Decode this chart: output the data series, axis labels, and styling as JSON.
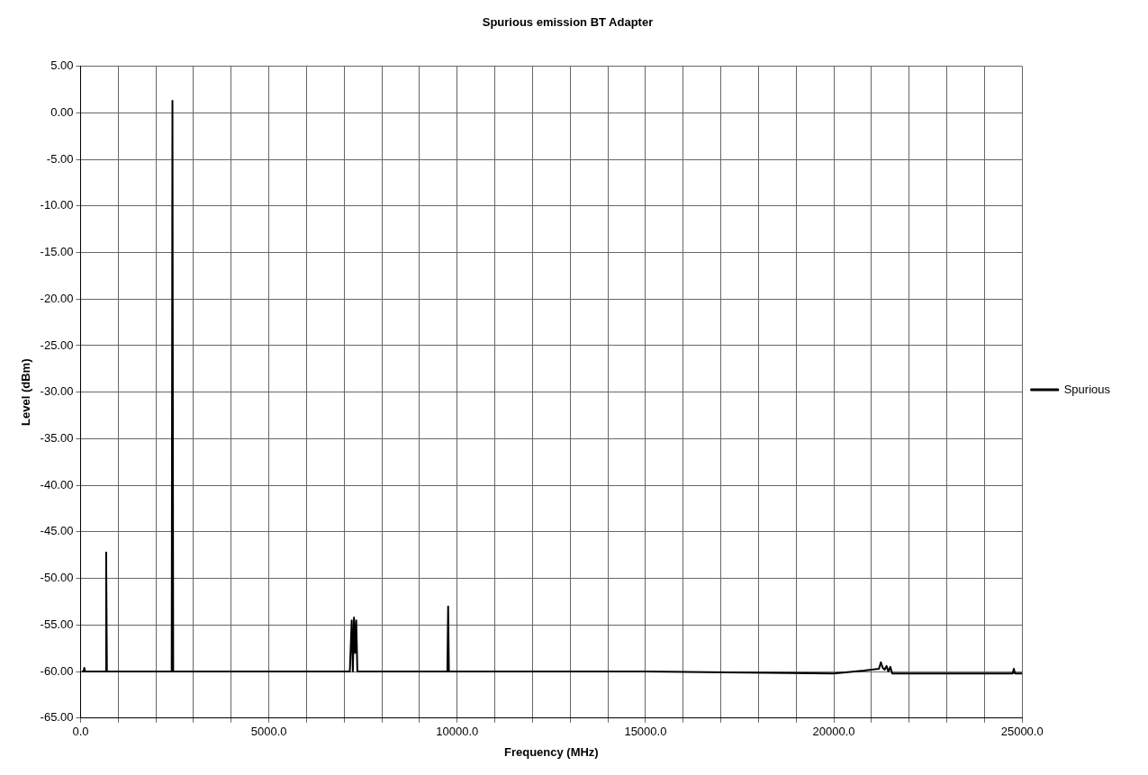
{
  "chart_data": {
    "type": "line",
    "title": "Spurious emission BT Adapter",
    "xlabel": "Frequency (MHz)",
    "ylabel": "Level (dBm)",
    "legend": "right",
    "grid": true,
    "marker": "none",
    "line_style": "solid",
    "xlim": [
      0,
      25000
    ],
    "ylim": [
      -65,
      5
    ],
    "xticks": [
      {
        "value": 0,
        "label": "0.0"
      },
      {
        "value": 1000,
        "label": null
      },
      {
        "value": 2000,
        "label": null
      },
      {
        "value": 3000,
        "label": null
      },
      {
        "value": 4000,
        "label": null
      },
      {
        "value": 5000,
        "label": "5000.0"
      },
      {
        "value": 6000,
        "label": null
      },
      {
        "value": 7000,
        "label": null
      },
      {
        "value": 8000,
        "label": null
      },
      {
        "value": 9000,
        "label": null
      },
      {
        "value": 10000,
        "label": "10000.0"
      },
      {
        "value": 11000,
        "label": null
      },
      {
        "value": 12000,
        "label": null
      },
      {
        "value": 13000,
        "label": null
      },
      {
        "value": 14000,
        "label": null
      },
      {
        "value": 15000,
        "label": "15000.0"
      },
      {
        "value": 16000,
        "label": null
      },
      {
        "value": 17000,
        "label": null
      },
      {
        "value": 18000,
        "label": null
      },
      {
        "value": 19000,
        "label": null
      },
      {
        "value": 20000,
        "label": "20000.0"
      },
      {
        "value": 21000,
        "label": null
      },
      {
        "value": 22000,
        "label": null
      },
      {
        "value": 23000,
        "label": null
      },
      {
        "value": 24000,
        "label": null
      },
      {
        "value": 25000,
        "label": "25000.0"
      }
    ],
    "yticks": [
      {
        "value": 5,
        "label": "5.00"
      },
      {
        "value": 0,
        "label": "0.00"
      },
      {
        "value": -5,
        "label": "-5.00"
      },
      {
        "value": -10,
        "label": "-10.00"
      },
      {
        "value": -15,
        "label": "-15.00"
      },
      {
        "value": -20,
        "label": "-20.00"
      },
      {
        "value": -25,
        "label": "-25.00"
      },
      {
        "value": -30,
        "label": "-30.00"
      },
      {
        "value": -35,
        "label": "-35.00"
      },
      {
        "value": -40,
        "label": "-40.00"
      },
      {
        "value": -45,
        "label": "-45.00"
      },
      {
        "value": -50,
        "label": "-50.00"
      },
      {
        "value": -55,
        "label": "-55.00"
      },
      {
        "value": -60,
        "label": "-60.00"
      },
      {
        "value": -65,
        "label": "-65.00"
      }
    ],
    "series": [
      {
        "name": "Spurious",
        "color": "#000000",
        "x": [
          30,
          80,
          100,
          120,
          600,
          660,
          680,
          700,
          740,
          2380,
          2420,
          2440,
          2460,
          2500,
          7150,
          7200,
          7230,
          7260,
          7290,
          7320,
          7350,
          7380,
          9700,
          9740,
          9760,
          9780,
          9820,
          15000,
          20000,
          20800,
          21200,
          21250,
          21300,
          21350,
          21400,
          21450,
          21500,
          21550,
          21600,
          24000,
          24750,
          24780,
          24810,
          25000
        ],
        "values": [
          -60,
          -60,
          -59.6,
          -60,
          -60,
          -60,
          -47.2,
          -60,
          -60,
          -60,
          -60,
          1.3,
          -60,
          -60,
          -60,
          -54.5,
          -60,
          -54.2,
          -58,
          -54.5,
          -60,
          -60,
          -60,
          -60,
          -53,
          -60,
          -60,
          -60,
          -60.2,
          -59.9,
          -59.7,
          -59.0,
          -59.6,
          -59.8,
          -59.4,
          -60,
          -59.5,
          -60.2,
          -60.2,
          -60.2,
          -60.2,
          -59.7,
          -60.2,
          -60.2
        ]
      }
    ]
  }
}
